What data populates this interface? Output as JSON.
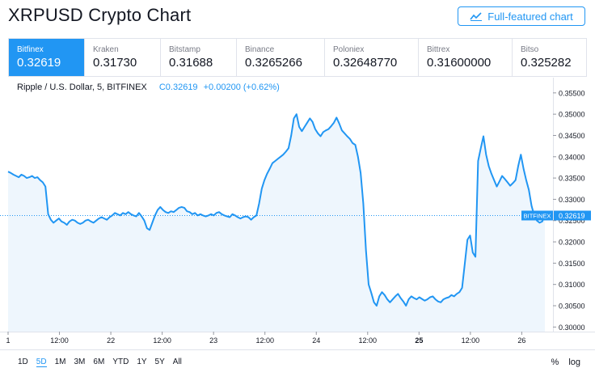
{
  "header": {
    "title": "XRPUSD Crypto Chart",
    "full_button": "Full-featured chart"
  },
  "exchanges": [
    {
      "name": "Bitfinex",
      "value": "0.32619",
      "active": true
    },
    {
      "name": "Kraken",
      "value": "0.31730"
    },
    {
      "name": "Bitstamp",
      "value": "0.31688"
    },
    {
      "name": "Binance",
      "value": "0.3265266"
    },
    {
      "name": "Poloniex",
      "value": "0.32648770"
    },
    {
      "name": "Bittrex",
      "value": "0.31600000"
    },
    {
      "name": "Bitso",
      "value": "0.325282"
    }
  ],
  "legend": {
    "symbol": "Ripple / U.S. Dollar, 5, BITFINEX",
    "close": "C0.32619",
    "change": "+0.00200 (+0.62%)"
  },
  "ranges": [
    "1D",
    "5D",
    "1M",
    "3M",
    "6M",
    "YTD",
    "1Y",
    "5Y",
    "All"
  ],
  "selected_range": "5D",
  "options": {
    "percent": "%",
    "log": "log"
  },
  "colors": {
    "accent": "#2196f3",
    "fill": "#eef6fd"
  },
  "chart_data": {
    "type": "area",
    "series": [
      {
        "name": "XRPUSD BITFINEX",
        "values": [
          0.3365,
          0.3362,
          0.3358,
          0.3355,
          0.3352,
          0.3358,
          0.3355,
          0.335,
          0.3352,
          0.3355,
          0.335,
          0.3352,
          0.3345,
          0.334,
          0.333,
          0.3265,
          0.3252,
          0.3245,
          0.325,
          0.3255,
          0.3248,
          0.3245,
          0.324,
          0.3248,
          0.3252,
          0.325,
          0.3245,
          0.3242,
          0.3245,
          0.325,
          0.3252,
          0.3248,
          0.3245,
          0.325,
          0.3255,
          0.3258,
          0.3255,
          0.3252,
          0.3258,
          0.3262,
          0.3268,
          0.3265,
          0.3262,
          0.3268,
          0.3265,
          0.327,
          0.3265,
          0.3262,
          0.326,
          0.3268,
          0.326,
          0.325,
          0.3232,
          0.3228,
          0.3245,
          0.3262,
          0.3275,
          0.3282,
          0.3275,
          0.327,
          0.3268,
          0.3272,
          0.327,
          0.3275,
          0.328,
          0.3282,
          0.328,
          0.3272,
          0.327,
          0.3265,
          0.3268,
          0.3262,
          0.3265,
          0.3262,
          0.326,
          0.3262,
          0.3265,
          0.3262,
          0.3268,
          0.327,
          0.3265,
          0.3262,
          0.326,
          0.3258,
          0.3265,
          0.3262,
          0.3258,
          0.3255,
          0.3258,
          0.326,
          0.3258,
          0.3252,
          0.3258,
          0.3262,
          0.329,
          0.3325,
          0.3345,
          0.336,
          0.3372,
          0.3385,
          0.339,
          0.3395,
          0.34,
          0.3405,
          0.3412,
          0.342,
          0.345,
          0.349,
          0.35,
          0.347,
          0.346,
          0.347,
          0.348,
          0.349,
          0.3482,
          0.3465,
          0.3455,
          0.3448,
          0.3458,
          0.3462,
          0.3465,
          0.3472,
          0.348,
          0.3492,
          0.3478,
          0.3462,
          0.3455,
          0.3448,
          0.3442,
          0.3432,
          0.3428,
          0.34,
          0.3362,
          0.329,
          0.318,
          0.31,
          0.308,
          0.3058,
          0.305,
          0.3072,
          0.3082,
          0.3075,
          0.3065,
          0.3058,
          0.3065,
          0.3072,
          0.3078,
          0.3068,
          0.306,
          0.305,
          0.3065,
          0.3072,
          0.3068,
          0.3065,
          0.307,
          0.3066,
          0.3062,
          0.3065,
          0.307,
          0.3072,
          0.3065,
          0.306,
          0.3058,
          0.3065,
          0.3068,
          0.307,
          0.3075,
          0.3072,
          0.3078,
          0.3082,
          0.3092,
          0.3148,
          0.3205,
          0.3215,
          0.3175,
          0.3165,
          0.339,
          0.342,
          0.3448,
          0.3405,
          0.3378,
          0.336,
          0.3345,
          0.333,
          0.3342,
          0.3355,
          0.3348,
          0.334,
          0.3332,
          0.3338,
          0.3345,
          0.3378,
          0.3405,
          0.3372,
          0.3345,
          0.3322,
          0.3285,
          0.3262,
          0.325,
          0.3245,
          0.3248,
          0.3262
        ]
      }
    ],
    "last_value": 0.32619,
    "last_label": "BITFINEX",
    "last_price_text": "0.32619",
    "ylim": [
      0.2993,
      0.3563
    ],
    "y_ticks": [
      "0.35500",
      "0.35000",
      "0.34500",
      "0.34000",
      "0.33500",
      "0.33000",
      "0.32500",
      "0.32000",
      "0.31500",
      "0.31000",
      "0.30500",
      "0.30000"
    ],
    "x_tick_labels": [
      "1",
      "12:00",
      "22",
      "12:00",
      "23",
      "12:00",
      "24",
      "12:00",
      "25",
      "12:00",
      "26"
    ],
    "bold_x_label": "25"
  }
}
